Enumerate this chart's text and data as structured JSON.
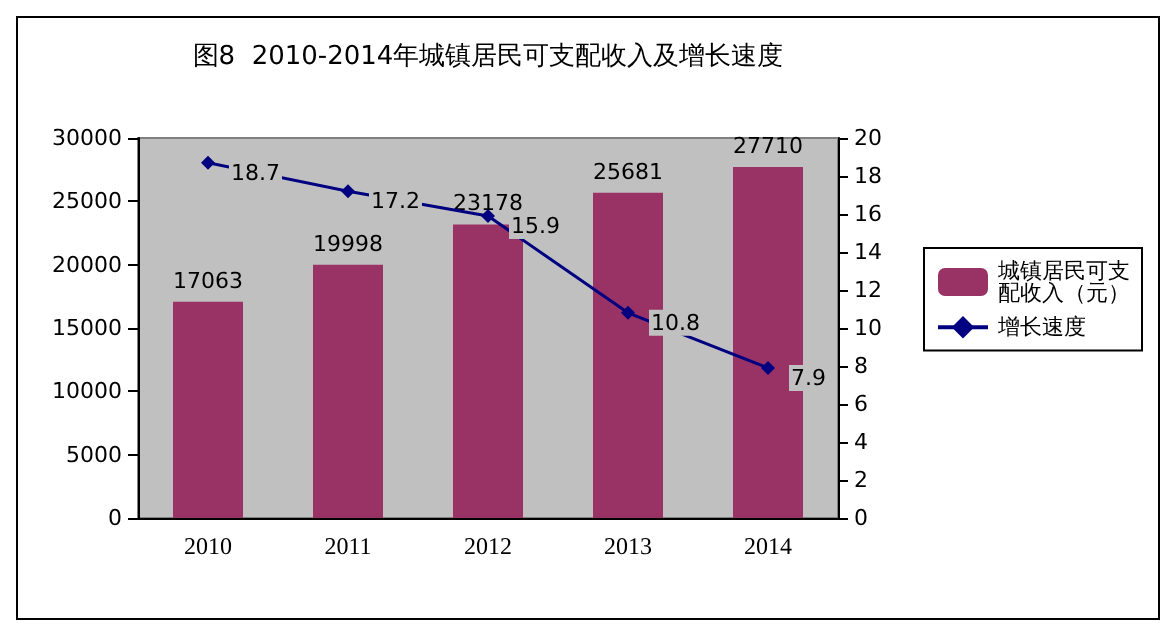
{
  "chart_data": {
    "type": "bar",
    "title": "图8  2010-2014年城镇居民可支配收入及增长速度",
    "categories": [
      "2010",
      "2011",
      "2012",
      "2013",
      "2014"
    ],
    "series": [
      {
        "name": "城镇居民可支配收入（元）",
        "color": "#993366",
        "values": [
          17063,
          19998,
          23178,
          25681,
          27710
        ]
      },
      {
        "name": "增长速度",
        "type": "line",
        "axis": "y2",
        "color": "#000080",
        "values": [
          18.7,
          17.2,
          15.9,
          10.8,
          7.9
        ]
      }
    ],
    "ylim": [
      0,
      30000
    ],
    "yticks": [
      0,
      5000,
      10000,
      15000,
      20000,
      25000,
      30000
    ],
    "y2lim": [
      0,
      20
    ],
    "y2ticks": [
      0,
      2,
      4,
      6,
      8,
      10,
      12,
      14,
      16,
      18,
      20
    ],
    "data_labels": true,
    "legend": "right",
    "grid": false,
    "marker": "diamond",
    "line_style": "solid"
  }
}
